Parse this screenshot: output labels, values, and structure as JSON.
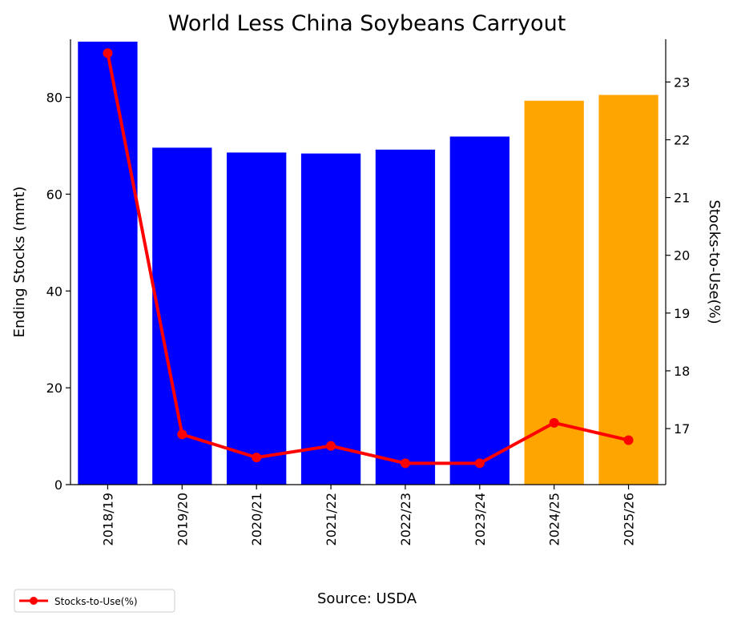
{
  "chart_data": {
    "type": "bar",
    "title": "World Less China Soybeans Carryout",
    "categories": [
      "2018/19",
      "2019/20",
      "2020/21",
      "2021/22",
      "2022/23",
      "2023/24",
      "2024/25",
      "2025/26"
    ],
    "bar_series": {
      "values": [
        91.5,
        69.6,
        68.6,
        68.4,
        69.2,
        71.9,
        79.3,
        80.5
      ],
      "colors": [
        "#0000ff",
        "#0000ff",
        "#0000ff",
        "#0000ff",
        "#0000ff",
        "#0000ff",
        "#ffa500",
        "#ffa500"
      ]
    },
    "line_series": {
      "name": "Stocks-to-Use(%)",
      "values": [
        23.5,
        16.9,
        16.5,
        16.7,
        16.4,
        16.4,
        17.1,
        16.8
      ],
      "color": "#ff0000"
    },
    "ylabel": "Ending Stocks (mmt)",
    "y2label": "Stocks-to-Use(%)",
    "ylim": [
      0,
      92
    ],
    "y2lim": [
      16.03,
      23.74
    ],
    "yticks": [
      0,
      20,
      40,
      60,
      80
    ],
    "y2ticks": [
      17,
      18,
      19,
      20,
      21,
      22,
      23
    ],
    "source_note": "Source: USDA",
    "legend_placement": "bottom-left",
    "grid": false
  }
}
